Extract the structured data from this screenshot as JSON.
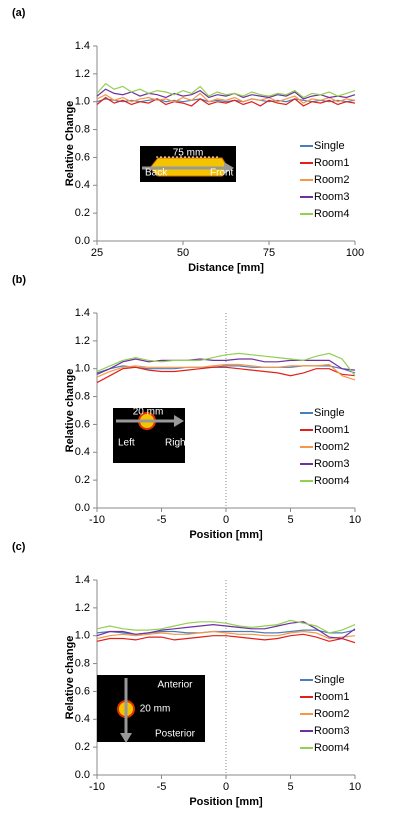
{
  "chart_data": [
    {
      "type": "line",
      "panel_label": "(a)",
      "xlabel": "Distance [mm]",
      "ylabel": "Relative Change",
      "x": [
        25,
        27.5,
        30,
        32.5,
        35,
        37.5,
        40,
        42.5,
        45,
        47.5,
        50,
        52.5,
        55,
        57.5,
        60,
        62.5,
        65,
        67.5,
        70,
        72.5,
        75,
        77.5,
        80,
        82.5,
        85,
        87.5,
        90,
        92.5,
        95,
        97.5,
        100
      ],
      "xlim": [
        25,
        100
      ],
      "xticks": [
        25,
        50,
        75,
        100
      ],
      "ylim": [
        0,
        1.4
      ],
      "yticks": [
        {
          "value": 0,
          "label": "0.0"
        },
        0.2,
        0.4,
        0.6,
        0.8,
        {
          "value": 1,
          "label": "1.0"
        },
        1.2,
        1.4
      ],
      "grid": false,
      "legend": "right",
      "annotations": [
        "75 mm",
        "Back",
        "Front"
      ],
      "series": [
        {
          "name": "Single",
          "color": "#4a7ebb",
          "values": [
            1.0,
            1.02,
            1.01,
            1.0,
            1.01,
            1.0,
            1.01,
            1.02,
            1.0,
            1.01,
            1.0,
            1.01,
            1.02,
            1.0,
            1.01,
            1.0,
            1.01,
            1.0,
            1.02,
            1.01,
            1.0,
            1.01,
            1.0,
            1.02,
            1.01,
            1.0,
            1.01,
            1.0,
            1.01,
            1.0,
            1.01
          ]
        },
        {
          "name": "Room1",
          "color": "#e0201b",
          "values": [
            0.98,
            1.03,
            0.99,
            1.01,
            0.98,
            1.0,
            0.99,
            1.02,
            0.98,
            1.0,
            0.99,
            0.97,
            1.02,
            0.98,
            1.0,
            0.99,
            1.01,
            0.98,
            1.0,
            0.97,
            1.01,
            0.99,
            0.98,
            1.02,
            0.97,
            1.0,
            0.99,
            1.01,
            0.98,
            1.0,
            0.99
          ]
        },
        {
          "name": "Room2",
          "color": "#f79646",
          "values": [
            1.02,
            1.05,
            1.01,
            1.03,
            1.0,
            1.02,
            1.03,
            1.01,
            1.02,
            1.0,
            1.03,
            1.01,
            1.06,
            1.0,
            1.02,
            1.01,
            1.03,
            1.0,
            1.02,
            1.01,
            1.03,
            1.0,
            1.02,
            1.04,
            0.99,
            1.02,
            1.01,
            1.03,
            1.0,
            1.02,
            1.01
          ]
        },
        {
          "name": "Room3",
          "color": "#7030a0",
          "values": [
            1.04,
            1.09,
            1.06,
            1.05,
            1.07,
            1.04,
            1.06,
            1.05,
            1.03,
            1.06,
            1.04,
            1.05,
            1.08,
            1.03,
            1.05,
            1.04,
            1.06,
            1.03,
            1.05,
            1.04,
            1.03,
            1.05,
            1.04,
            1.07,
            1.02,
            1.04,
            1.05,
            1.03,
            1.04,
            1.03,
            1.05
          ]
        },
        {
          "name": "Room4",
          "color": "#92d050",
          "values": [
            1.06,
            1.13,
            1.09,
            1.11,
            1.07,
            1.09,
            1.06,
            1.08,
            1.07,
            1.05,
            1.08,
            1.06,
            1.11,
            1.04,
            1.07,
            1.05,
            1.06,
            1.04,
            1.07,
            1.05,
            1.04,
            1.06,
            1.05,
            1.08,
            1.03,
            1.06,
            1.05,
            1.07,
            1.04,
            1.06,
            1.08
          ]
        }
      ]
    },
    {
      "type": "line",
      "panel_label": "(b)",
      "xlabel": "Position [mm]",
      "ylabel": "Relative change",
      "x": [
        -10,
        -9,
        -8,
        -7,
        -6,
        -5,
        -4,
        -3,
        -2,
        -1,
        0,
        1,
        2,
        3,
        4,
        5,
        6,
        7,
        8,
        9,
        10
      ],
      "xlim": [
        -10,
        10
      ],
      "xticks": [
        -10,
        -5,
        0,
        5,
        10
      ],
      "vline": 0,
      "ylim": [
        0,
        1.4
      ],
      "yticks": [
        {
          "value": 0,
          "label": "0.0"
        },
        0.2,
        0.4,
        0.6,
        0.8,
        {
          "value": 1,
          "label": "1.0"
        },
        1.2,
        1.4
      ],
      "grid": false,
      "legend": "right",
      "annotations": [
        "20 mm",
        "Left",
        "Right"
      ],
      "series": [
        {
          "name": "Single",
          "color": "#4a7ebb",
          "values": [
            0.97,
            1.0,
            1.02,
            1.01,
            1.0,
            1.0,
            1.0,
            1.01,
            1.01,
            1.01,
            1.02,
            1.02,
            1.01,
            1.01,
            1.01,
            1.01,
            1.02,
            1.02,
            1.02,
            1.0,
            0.97
          ]
        },
        {
          "name": "Room1",
          "color": "#e0201b",
          "values": [
            0.9,
            0.95,
            1.0,
            1.01,
            0.99,
            0.98,
            0.98,
            0.99,
            1.0,
            1.01,
            1.01,
            1.0,
            0.99,
            0.98,
            0.97,
            0.95,
            0.97,
            1.0,
            1.0,
            0.96,
            0.95
          ]
        },
        {
          "name": "Room2",
          "color": "#f79646",
          "values": [
            0.94,
            0.98,
            1.01,
            1.02,
            1.01,
            1.01,
            1.01,
            1.01,
            1.01,
            1.02,
            1.03,
            1.03,
            1.02,
            1.01,
            1.01,
            1.02,
            1.02,
            1.02,
            1.03,
            0.95,
            0.92
          ]
        },
        {
          "name": "Room3",
          "color": "#7030a0",
          "values": [
            0.96,
            1.0,
            1.05,
            1.07,
            1.05,
            1.06,
            1.06,
            1.06,
            1.07,
            1.06,
            1.06,
            1.07,
            1.07,
            1.05,
            1.05,
            1.06,
            1.06,
            1.06,
            1.06,
            1.0,
            0.99
          ]
        },
        {
          "name": "Room4",
          "color": "#92d050",
          "values": [
            0.98,
            1.02,
            1.06,
            1.08,
            1.06,
            1.05,
            1.06,
            1.06,
            1.06,
            1.08,
            1.1,
            1.11,
            1.1,
            1.09,
            1.08,
            1.07,
            1.06,
            1.09,
            1.11,
            1.07,
            0.95
          ]
        }
      ]
    },
    {
      "type": "line",
      "panel_label": "(c)",
      "xlabel": "Position [mm]",
      "ylabel": "Relative change",
      "x": [
        -10,
        -9,
        -8,
        -7,
        -6,
        -5,
        -4,
        -3,
        -2,
        -1,
        0,
        1,
        2,
        3,
        4,
        5,
        6,
        7,
        8,
        9,
        10
      ],
      "xlim": [
        -10,
        10
      ],
      "xticks": [
        -10,
        -5,
        0,
        5,
        10
      ],
      "vline": 0,
      "ylim": [
        0,
        1.4
      ],
      "yticks": [
        {
          "value": 0,
          "label": "0.0"
        },
        0.2,
        0.4,
        0.6,
        0.8,
        {
          "value": 1,
          "label": "1.0"
        },
        1.2,
        1.4
      ],
      "grid": false,
      "legend": "right",
      "annotations": [
        "Anterior",
        "20 mm",
        "Posterior"
      ],
      "series": [
        {
          "name": "Single",
          "color": "#4a7ebb",
          "values": [
            1.02,
            1.03,
            1.02,
            1.01,
            1.02,
            1.03,
            1.03,
            1.02,
            1.02,
            1.03,
            1.03,
            1.03,
            1.03,
            1.02,
            1.02,
            1.03,
            1.04,
            1.04,
            1.02,
            1.02,
            1.04
          ]
        },
        {
          "name": "Room1",
          "color": "#e0201b",
          "values": [
            0.96,
            0.98,
            0.98,
            0.97,
            0.99,
            0.99,
            0.97,
            0.98,
            0.99,
            1.0,
            1.0,
            0.99,
            0.98,
            0.97,
            0.98,
            1.0,
            1.01,
            0.99,
            0.96,
            0.98,
            0.95
          ]
        },
        {
          "name": "Room2",
          "color": "#f79646",
          "values": [
            0.98,
            1.0,
            1.01,
            1.0,
            1.01,
            1.02,
            1.01,
            1.01,
            1.02,
            1.03,
            1.02,
            1.01,
            1.01,
            1.0,
            1.0,
            1.02,
            1.03,
            1.02,
            0.98,
            0.99,
            1.0
          ]
        },
        {
          "name": "Room3",
          "color": "#7030a0",
          "values": [
            1.0,
            1.03,
            1.03,
            1.01,
            1.02,
            1.04,
            1.05,
            1.06,
            1.07,
            1.08,
            1.07,
            1.06,
            1.05,
            1.05,
            1.07,
            1.09,
            1.1,
            1.05,
            0.99,
            0.98,
            1.05
          ]
        },
        {
          "name": "Room4",
          "color": "#92d050",
          "values": [
            1.05,
            1.07,
            1.05,
            1.04,
            1.04,
            1.05,
            1.07,
            1.09,
            1.1,
            1.1,
            1.09,
            1.07,
            1.06,
            1.07,
            1.08,
            1.11,
            1.09,
            1.07,
            1.02,
            1.04,
            1.08
          ]
        }
      ]
    }
  ]
}
